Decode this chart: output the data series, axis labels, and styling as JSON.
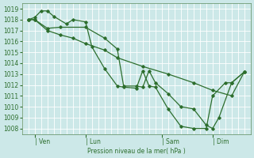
{
  "background_color": "#cce8e8",
  "grid_color": "#b0d4d4",
  "line_color": "#2d6e2d",
  "marker_color": "#2d6e2d",
  "xlabel": "Pression niveau de la mer( hPa )",
  "ylim": [
    1007.5,
    1019.5
  ],
  "yticks": [
    1008,
    1009,
    1010,
    1011,
    1012,
    1013,
    1014,
    1015,
    1016,
    1017,
    1018,
    1019
  ],
  "xlim": [
    -6,
    102
  ],
  "xtick_labels": [
    "| Ven",
    "| Lun",
    "| Sam",
    "| Dim"
  ],
  "xtick_positions": [
    0,
    24,
    60,
    84
  ],
  "series1_x": [
    -3,
    0,
    3,
    6,
    9,
    15,
    18,
    24,
    27,
    33,
    39,
    42,
    48,
    51,
    54,
    57,
    63,
    69,
    75,
    81,
    84,
    90,
    93,
    99
  ],
  "series1_y": [
    1018.0,
    1018.2,
    1018.8,
    1018.8,
    1018.3,
    1017.6,
    1018.0,
    1017.8,
    1015.5,
    1013.5,
    1011.9,
    1011.8,
    1011.7,
    1013.3,
    1011.9,
    1011.8,
    1009.8,
    1008.2,
    1008.0,
    1008.0,
    1011.0,
    1012.2,
    1012.2,
    1013.2
  ],
  "series2_x": [
    -3,
    0,
    6,
    12,
    18,
    24,
    33,
    39,
    51,
    63,
    75,
    84,
    93,
    99
  ],
  "series2_y": [
    1018.0,
    1018.0,
    1017.0,
    1016.6,
    1016.3,
    1015.8,
    1015.2,
    1014.5,
    1013.7,
    1013.0,
    1012.2,
    1011.5,
    1011.0,
    1013.2
  ],
  "series3_x": [
    -3,
    0,
    6,
    12,
    24,
    33,
    39,
    42,
    48,
    51,
    54,
    57,
    63,
    69,
    75,
    81,
    84,
    87,
    93,
    99
  ],
  "series3_y": [
    1018.0,
    1018.0,
    1017.2,
    1017.3,
    1017.3,
    1016.3,
    1015.3,
    1011.9,
    1011.9,
    1011.8,
    1013.3,
    1012.2,
    1011.2,
    1010.0,
    1009.8,
    1008.3,
    1008.0,
    1009.0,
    1012.2,
    1013.2
  ],
  "minor_xtick_interval": 3,
  "minor_ytick_interval": 1
}
